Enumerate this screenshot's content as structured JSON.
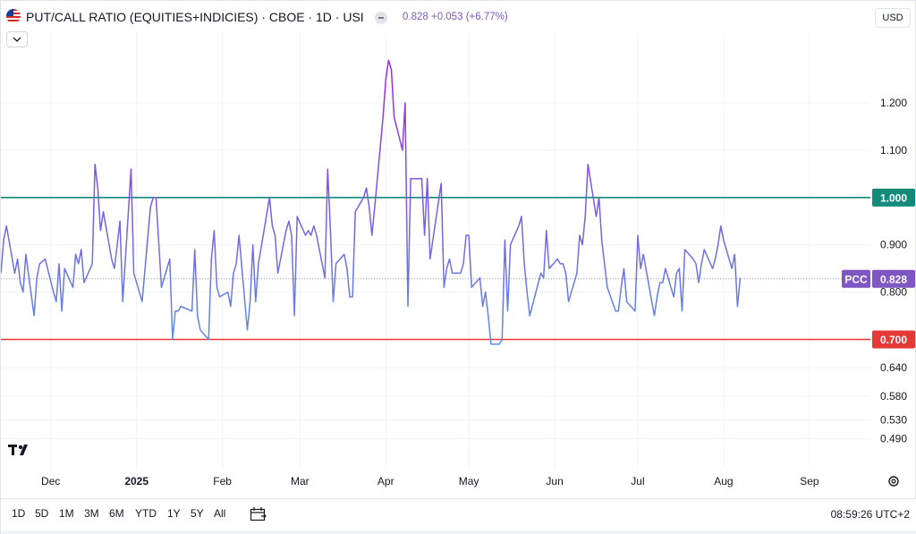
{
  "header": {
    "title": "PUT/CALL RATIO (EQUITIES+INDICIES) · CBOE · 1D · USI",
    "price": "0.828",
    "change": "+0.053",
    "change_pct": "(+6.77%)",
    "currency": "USD"
  },
  "toolbar": {
    "ranges": [
      "1D",
      "5D",
      "1M",
      "3M",
      "6M",
      "YTD",
      "1Y",
      "5Y",
      "All"
    ],
    "clock": "08:59:26 UTC+2"
  },
  "colors": {
    "line_start": "#5b8ee6",
    "line_end": "#9c27e0",
    "upper_line": "#138a7a",
    "lower_line": "#e53935",
    "pcc_badge": "#7e57c2"
  },
  "chart_data": {
    "type": "line",
    "title": "PUT/CALL RATIO (EQUITIES+INDICIES) · CBOE · 1D · USI",
    "xlabel": "",
    "ylabel": "",
    "y_ticks": [
      1.2,
      1.1,
      0.9,
      0.8,
      0.64,
      0.58,
      0.53,
      0.49
    ],
    "x_labels": [
      {
        "label": "Dec",
        "date": "2024-12-01"
      },
      {
        "label": "2025",
        "date": "2025-01-01",
        "bold": true
      },
      {
        "label": "Feb",
        "date": "2025-02-01"
      },
      {
        "label": "Mar",
        "date": "2025-03-01"
      },
      {
        "label": "Apr",
        "date": "2025-04-01"
      },
      {
        "label": "May",
        "date": "2025-05-01"
      },
      {
        "label": "Jun",
        "date": "2025-06-01"
      },
      {
        "label": "Jul",
        "date": "2025-07-01"
      },
      {
        "label": "Aug",
        "date": "2025-08-01"
      },
      {
        "label": "Sep",
        "date": "2025-09-01"
      }
    ],
    "x_range": [
      "2024-11-13",
      "2025-09-23"
    ],
    "y_range": [
      0.44,
      1.34
    ],
    "horizontal_lines": [
      {
        "value": 1.0,
        "label": "1.000",
        "color": "#138a7a"
      },
      {
        "value": 0.7,
        "label": "0.700",
        "color": "#e53935"
      }
    ],
    "current": {
      "name": "PCC",
      "value": 0.828,
      "label": "0.828"
    },
    "grid": true,
    "series": [
      {
        "name": "PCC",
        "x": [
          "2024-11-13",
          "2024-11-14",
          "2024-11-15",
          "2024-11-18",
          "2024-11-19",
          "2024-11-20",
          "2024-11-21",
          "2024-11-22",
          "2024-11-25",
          "2024-11-26",
          "2024-11-27",
          "2024-11-29",
          "2024-12-02",
          "2024-12-03",
          "2024-12-04",
          "2024-12-05",
          "2024-12-06",
          "2024-12-09",
          "2024-12-10",
          "2024-12-11",
          "2024-12-12",
          "2024-12-13",
          "2024-12-16",
          "2024-12-17",
          "2024-12-18",
          "2024-12-19",
          "2024-12-20",
          "2024-12-23",
          "2024-12-24",
          "2024-12-26",
          "2024-12-27",
          "2024-12-30",
          "2024-12-31",
          "2025-01-02",
          "2025-01-03",
          "2025-01-06",
          "2025-01-07",
          "2025-01-08",
          "2025-01-10",
          "2025-01-13",
          "2025-01-14",
          "2025-01-15",
          "2025-01-16",
          "2025-01-17",
          "2025-01-21",
          "2025-01-22",
          "2025-01-23",
          "2025-01-24",
          "2025-01-27",
          "2025-01-28",
          "2025-01-29",
          "2025-01-30",
          "2025-01-31",
          "2025-02-03",
          "2025-02-04",
          "2025-02-05",
          "2025-02-06",
          "2025-02-07",
          "2025-02-10",
          "2025-02-11",
          "2025-02-12",
          "2025-02-13",
          "2025-02-14",
          "2025-02-18",
          "2025-02-19",
          "2025-02-20",
          "2025-02-21",
          "2025-02-24",
          "2025-02-25",
          "2025-02-26",
          "2025-02-27",
          "2025-02-28",
          "2025-03-03",
          "2025-03-04",
          "2025-03-05",
          "2025-03-06",
          "2025-03-07",
          "2025-03-10",
          "2025-03-11",
          "2025-03-12",
          "2025-03-13",
          "2025-03-14",
          "2025-03-17",
          "2025-03-18",
          "2025-03-19",
          "2025-03-20",
          "2025-03-21",
          "2025-03-24",
          "2025-03-25",
          "2025-03-26",
          "2025-03-27",
          "2025-03-28",
          "2025-03-31",
          "2025-04-01",
          "2025-04-02",
          "2025-04-03",
          "2025-04-04",
          "2025-04-07",
          "2025-04-08",
          "2025-04-09",
          "2025-04-10",
          "2025-04-11",
          "2025-04-14",
          "2025-04-15",
          "2025-04-16",
          "2025-04-17",
          "2025-04-21",
          "2025-04-22",
          "2025-04-23",
          "2025-04-24",
          "2025-04-25",
          "2025-04-28",
          "2025-04-29",
          "2025-04-30",
          "2025-05-01",
          "2025-05-02",
          "2025-05-05",
          "2025-05-06",
          "2025-05-07",
          "2025-05-08",
          "2025-05-09",
          "2025-05-12",
          "2025-05-13",
          "2025-05-14",
          "2025-05-15",
          "2025-05-16",
          "2025-05-19",
          "2025-05-20",
          "2025-05-21",
          "2025-05-22",
          "2025-05-23",
          "2025-05-27",
          "2025-05-28",
          "2025-05-29",
          "2025-05-30",
          "2025-06-02",
          "2025-06-03",
          "2025-06-04",
          "2025-06-05",
          "2025-06-06",
          "2025-06-09",
          "2025-06-10",
          "2025-06-11",
          "2025-06-12",
          "2025-06-13",
          "2025-06-16",
          "2025-06-17",
          "2025-06-18",
          "2025-06-20",
          "2025-06-23",
          "2025-06-24",
          "2025-06-25",
          "2025-06-26",
          "2025-06-27",
          "2025-06-30",
          "2025-07-01",
          "2025-07-02",
          "2025-07-03",
          "2025-07-07",
          "2025-07-08",
          "2025-07-09",
          "2025-07-10",
          "2025-07-11",
          "2025-07-14",
          "2025-07-15",
          "2025-07-16",
          "2025-07-17",
          "2025-07-18",
          "2025-07-21",
          "2025-07-22",
          "2025-07-23",
          "2025-07-24",
          "2025-07-25",
          "2025-07-28",
          "2025-07-29",
          "2025-07-30",
          "2025-07-31",
          "2025-08-01",
          "2025-08-04",
          "2025-08-05",
          "2025-08-06",
          "2025-08-07"
        ],
        "values": [
          0.84,
          0.91,
          0.94,
          0.84,
          0.87,
          0.82,
          0.8,
          0.88,
          0.75,
          0.83,
          0.86,
          0.87,
          0.8,
          0.78,
          0.86,
          0.76,
          0.85,
          0.81,
          0.88,
          0.86,
          0.89,
          0.82,
          0.86,
          1.07,
          1.02,
          0.93,
          0.97,
          0.87,
          0.85,
          0.95,
          0.78,
          1.06,
          0.84,
          0.8,
          0.78,
          0.98,
          1.0,
          1.0,
          0.81,
          0.87,
          0.7,
          0.76,
          0.76,
          0.77,
          0.76,
          0.89,
          0.75,
          0.72,
          0.7,
          0.87,
          0.93,
          0.81,
          0.79,
          0.8,
          0.77,
          0.84,
          0.86,
          0.92,
          0.72,
          0.78,
          0.9,
          0.78,
          0.86,
          1.0,
          0.94,
          0.92,
          0.84,
          0.93,
          0.95,
          0.92,
          0.75,
          0.96,
          0.92,
          0.93,
          0.92,
          0.94,
          0.92,
          0.83,
          1.06,
          0.93,
          0.78,
          0.86,
          0.88,
          0.85,
          0.79,
          0.79,
          0.97,
          1.0,
          1.02,
          0.98,
          0.92,
          0.98,
          1.17,
          1.25,
          1.29,
          1.27,
          1.17,
          1.1,
          1.2,
          0.77,
          1.04,
          1.04,
          1.04,
          0.92,
          1.04,
          0.87,
          1.03,
          0.81,
          0.85,
          0.87,
          0.84,
          0.84,
          0.86,
          0.92,
          0.92,
          0.81,
          0.83,
          0.77,
          0.8,
          0.75,
          0.69,
          0.69,
          0.7,
          0.91,
          0.76,
          0.9,
          0.94,
          0.96,
          0.86,
          0.8,
          0.75,
          0.84,
          0.83,
          0.93,
          0.85,
          0.87,
          0.86,
          0.86,
          0.84,
          0.78,
          0.84,
          0.92,
          0.9,
          0.96,
          1.07,
          0.96,
          1.0,
          0.91,
          0.81,
          0.76,
          0.76,
          0.81,
          0.85,
          0.78,
          0.76,
          0.92,
          0.85,
          0.88,
          0.75,
          0.79,
          0.82,
          0.82,
          0.85,
          0.79,
          0.84,
          0.85,
          0.76,
          0.89,
          0.87,
          0.86,
          0.82,
          0.86,
          0.89,
          0.85,
          0.87,
          0.9,
          0.94,
          0.91,
          0.85,
          0.88,
          0.77,
          0.83
        ]
      }
    ]
  }
}
